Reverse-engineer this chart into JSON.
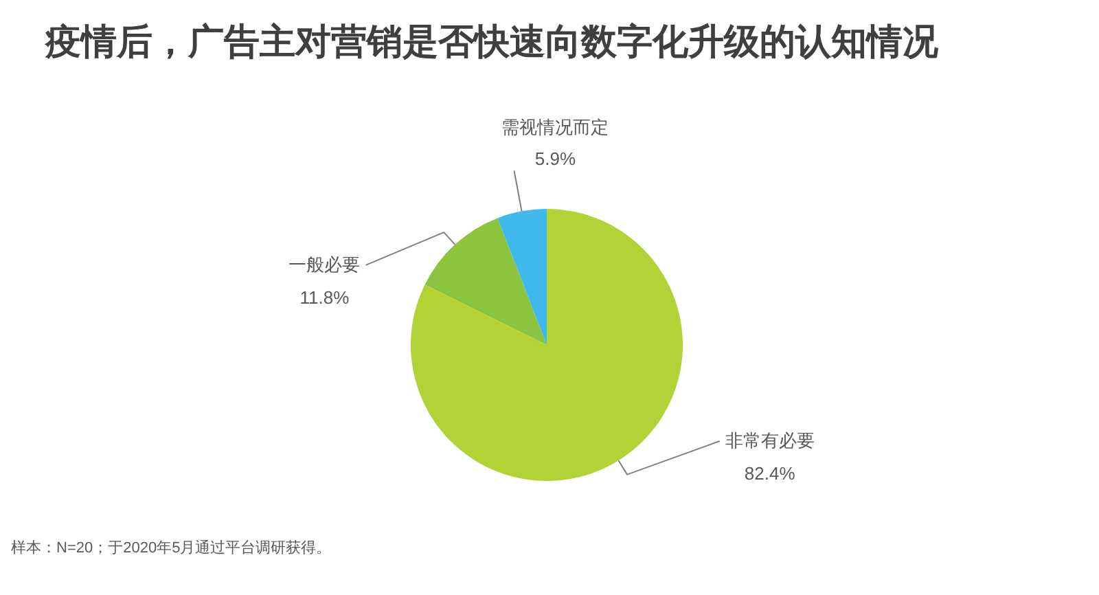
{
  "chart_data": {
    "type": "pie",
    "title": "疫情后，广告主对营销是否快速向数字化升级的认知情况",
    "categories": [
      "非常有必要",
      "一般必要",
      "需视情况而定"
    ],
    "values": [
      82.4,
      11.8,
      5.9
    ],
    "colors": [
      "#b2d235",
      "#8cc43f",
      "#3fb8ec"
    ],
    "value_labels": [
      "82.4%",
      "11.8%",
      "5.9%"
    ],
    "annotations": [
      "样本：N=20；于2020年5月通过平台调研获得。"
    ]
  }
}
